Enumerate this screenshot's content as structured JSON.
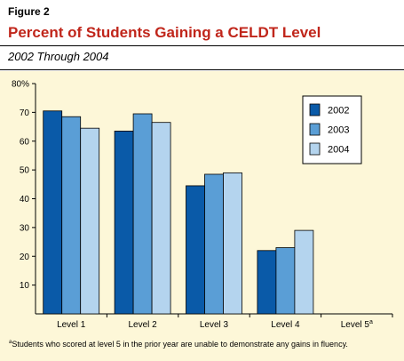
{
  "figure_label": "Figure 2",
  "title": "Percent of Students Gaining a CELDT Level",
  "subtitle": "2002 Through 2004",
  "footnote": {
    "marker": "a",
    "text": "Students who scored at level 5 in the prior year are unable to demonstrate any gains in fluency."
  },
  "chart_data": {
    "type": "bar",
    "categories": [
      "Level 1",
      "Level 2",
      "Level 3",
      "Level 4",
      "Level 5"
    ],
    "category_superscripts": [
      "",
      "",
      "",
      "",
      "a"
    ],
    "series": [
      {
        "name": "2002",
        "color": "#0a5aa8",
        "values": [
          70.5,
          63.5,
          44.5,
          22,
          null
        ]
      },
      {
        "name": "2003",
        "color": "#5a9ed6",
        "values": [
          68.5,
          69.5,
          48.5,
          23,
          null
        ]
      },
      {
        "name": "2004",
        "color": "#b4d4ee",
        "values": [
          64.5,
          66.5,
          49,
          29,
          null
        ]
      }
    ],
    "yticks": [
      "10",
      "20",
      "30",
      "40",
      "50",
      "60",
      "70",
      "80%"
    ],
    "ylim": [
      0,
      80
    ],
    "grid": false,
    "legend_position": "top-right"
  }
}
